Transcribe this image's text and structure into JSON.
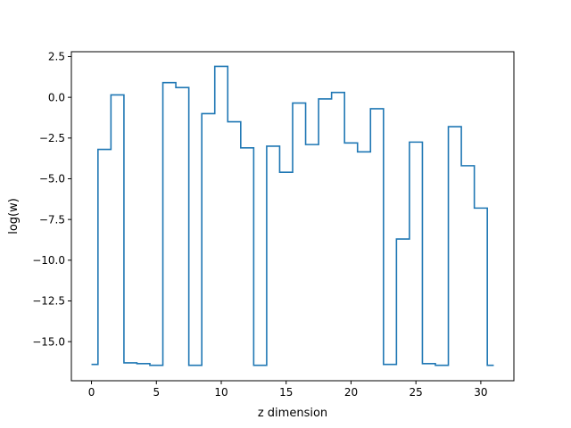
{
  "figure": {
    "background": "#ffffff"
  },
  "chart_data": {
    "type": "line",
    "drawstyle": "steps-mid",
    "xlabel": "z dimension",
    "ylabel": "log(w)",
    "xlim": [
      -1.55,
      32.55
    ],
    "ylim": [
      -17.4,
      2.8
    ],
    "xticks": [
      0,
      5,
      10,
      15,
      20,
      25,
      30
    ],
    "xtick_labels": [
      "0",
      "5",
      "10",
      "15",
      "20",
      "25",
      "30"
    ],
    "yticks": [
      2.5,
      0.0,
      -2.5,
      -5.0,
      -7.5,
      -10.0,
      -12.5,
      -15.0
    ],
    "ytick_labels": [
      "2.5",
      "0.0",
      "−2.5",
      "−5.0",
      "−7.5",
      "−10.0",
      "−12.5",
      "−15.0"
    ],
    "grid": false,
    "series": [
      {
        "color": "#1f77b4",
        "x": [
          0,
          1,
          2,
          3,
          4,
          5,
          6,
          7,
          8,
          9,
          10,
          11,
          12,
          13,
          14,
          15,
          16,
          17,
          18,
          19,
          20,
          21,
          22,
          23,
          24,
          25,
          26,
          27,
          28,
          29,
          30,
          31
        ],
        "values": [
          -16.4,
          -3.2,
          0.15,
          -16.3,
          -16.35,
          -16.45,
          0.9,
          0.6,
          -16.45,
          -1.0,
          1.9,
          -1.5,
          -3.1,
          -16.45,
          -3.0,
          -4.6,
          -0.35,
          -2.9,
          -0.1,
          0.3,
          -2.8,
          -3.35,
          -0.7,
          -16.4,
          -8.7,
          -2.75,
          -16.35,
          -16.45,
          -1.8,
          -4.2,
          -6.8,
          -16.45
        ]
      }
    ]
  }
}
